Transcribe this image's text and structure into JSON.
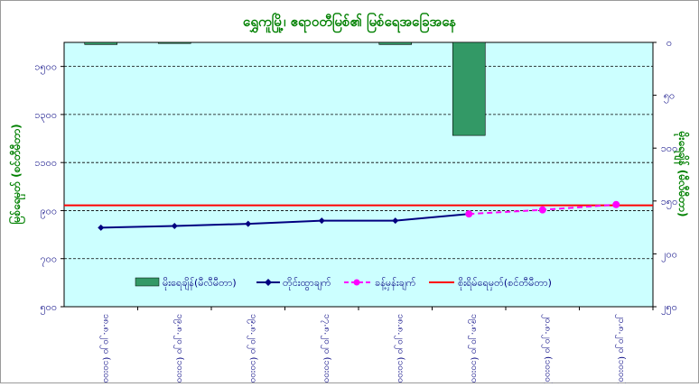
{
  "chart_data": {
    "type": "bar+line",
    "title": "ရွှေကူမြို့၊ ဧရာဝတီမြစ်၏ မြစ်ရေအခြေအနေ",
    "ylabel_left": "မြစ်ရေမှတ် (စင်တီမီတာ)",
    "ylabel_right": "မိုးရေချိန် (မီလီမီတာ)",
    "xlabel": "",
    "categories": [
      "၁၈.၈.၂၀၂၀ (၁၀း၀၀)",
      "၁၉.၈.၂၀၂၀ (၁၀း၀၀)",
      "၁၉.၈.၂၀၂၀ (၁၀း၀၀)",
      "၁၇.၈.၂၀၂၀ (၁၀း၀၀)",
      "၁၈.၈.၂၀၂၀ (၁၀း၀၀)",
      "၁၉.၈.၂၀၂၀ (၁၀း၀၀)",
      "၂၀.၈.၂၀၂၀ (၁၀း၀၀)",
      "၂၁.၈.၂၀၂၀ (၁၀း၀၀)"
    ],
    "y_left": {
      "min": 500,
      "max": 1600,
      "ticks": [
        500,
        700,
        900,
        1100,
        1300,
        1500
      ],
      "tick_labels": [
        "၅၀၀",
        "၇၀၀",
        "၉၀၀",
        "၁၁၀၀",
        "၁၃၀၀",
        "၁၅၀၀"
      ]
    },
    "y_right": {
      "min": 0,
      "max": 250,
      "inverted": true,
      "ticks": [
        0,
        50,
        100,
        150,
        200,
        250
      ],
      "tick_labels": [
        "၀",
        "၅၀",
        "၁၀၀",
        "၁၅၀",
        "၂၀၀",
        "၂၅၀"
      ]
    },
    "series": [
      {
        "name": "မိုးရေချိန်(မီလီမီတာ)",
        "kind": "bar",
        "axis": "right",
        "color": "#339966",
        "values": [
          2,
          1,
          0,
          0,
          2,
          88,
          0,
          0
        ]
      },
      {
        "name": "တိုင်းထွာချက်",
        "kind": "line",
        "axis": "left",
        "color": "#000080",
        "values": [
          829,
          836,
          845,
          858,
          858,
          886,
          null,
          null
        ]
      },
      {
        "name": "ခန့်မှန်းချက်",
        "kind": "line-dashed",
        "axis": "left",
        "color": "#ff00ff",
        "values": [
          null,
          null,
          null,
          null,
          null,
          886,
          903,
          925
        ]
      },
      {
        "name": "စိုးရိမ်ရေမှတ်(စင်တီမီတာ)",
        "kind": "hline",
        "axis": "left",
        "color": "#ff0000",
        "value": 922
      }
    ],
    "grid": true,
    "legend_position": "bottom-inside",
    "plot_background": "#ccffff",
    "title_color": "#008000",
    "axis_label_color": "#008000",
    "tick_color": "#000080"
  }
}
